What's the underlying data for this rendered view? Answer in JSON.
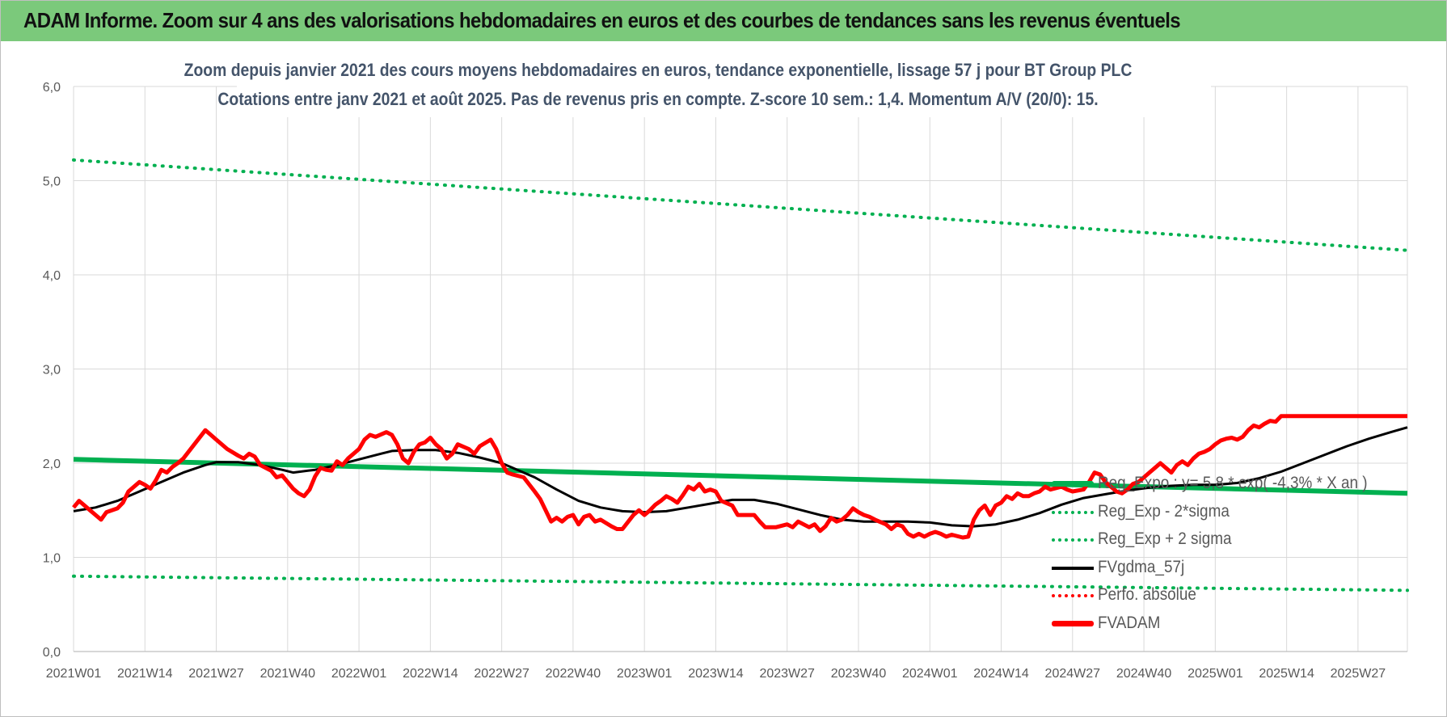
{
  "header": {
    "title": "ADAM Informe. Zoom sur 4 ans des valorisations hebdomadaires en euros et des courbes de tendances sans les revenus éventuels"
  },
  "chart_data": {
    "type": "line",
    "title": "Zoom depuis janvier 2021 des cours moyens hebdomadaires en euros, tendance exponentielle, lissage 57 j pour BT Group PLC",
    "subtitle": "Cotations entre janv 2021 et août 2025.  Pas de revenus pris en compte. Z-score 10 sem.: 1,4. Momentum A/V (20/0): 15.",
    "xlabel": "",
    "ylabel": "",
    "ylim": [
      0,
      6
    ],
    "yticks": [
      "0,0",
      "1,0",
      "2,0",
      "3,0",
      "4,0",
      "5,0",
      "6,0"
    ],
    "x_range_weeks": [
      0,
      243
    ],
    "xticks": [
      {
        "week": 0,
        "label": "2021W01"
      },
      {
        "week": 13,
        "label": "2021W14"
      },
      {
        "week": 26,
        "label": "2021W27"
      },
      {
        "week": 39,
        "label": "2021W40"
      },
      {
        "week": 52,
        "label": "2022W01"
      },
      {
        "week": 65,
        "label": "2022W14"
      },
      {
        "week": 78,
        "label": "2022W27"
      },
      {
        "week": 91,
        "label": "2022W40"
      },
      {
        "week": 104,
        "label": "2023W01"
      },
      {
        "week": 117,
        "label": "2023W14"
      },
      {
        "week": 130,
        "label": "2023W27"
      },
      {
        "week": 143,
        "label": "2023W40"
      },
      {
        "week": 156,
        "label": "2024W01"
      },
      {
        "week": 169,
        "label": "2024W14"
      },
      {
        "week": 182,
        "label": "2024W27"
      },
      {
        "week": 195,
        "label": "2024W40"
      },
      {
        "week": 208,
        "label": "2025W01"
      },
      {
        "week": 221,
        "label": "2025W14"
      },
      {
        "week": 234,
        "label": "2025W27"
      }
    ],
    "grid": true,
    "legend_position": "right",
    "series": [
      {
        "name": "Reg_Expo : y= 5,8 * exp( -4,3% * X  an )",
        "style": "solid-thick",
        "color": "#00b050",
        "points": [
          [
            0,
            2.04
          ],
          [
            243,
            1.68
          ]
        ]
      },
      {
        "name": "Reg_Exp - 2*sigma",
        "style": "dotted",
        "color": "#00b050",
        "points": [
          [
            0,
            0.8
          ],
          [
            243,
            0.65
          ]
        ]
      },
      {
        "name": "Reg_Exp + 2 sigma",
        "style": "dotted",
        "color": "#00b050",
        "points": [
          [
            0,
            5.22
          ],
          [
            243,
            4.26
          ]
        ]
      },
      {
        "name": "FVgdma_57j",
        "style": "solid",
        "color": "#000000",
        "points": [
          [
            0,
            1.49
          ],
          [
            4,
            1.53
          ],
          [
            8,
            1.6
          ],
          [
            12,
            1.7
          ],
          [
            16,
            1.8
          ],
          [
            20,
            1.9
          ],
          [
            24,
            1.98
          ],
          [
            26,
            2.01
          ],
          [
            30,
            2.01
          ],
          [
            34,
            1.98
          ],
          [
            38,
            1.93
          ],
          [
            40,
            1.9
          ],
          [
            44,
            1.93
          ],
          [
            48,
            1.98
          ],
          [
            52,
            2.04
          ],
          [
            56,
            2.1
          ],
          [
            58,
            2.13
          ],
          [
            62,
            2.14
          ],
          [
            66,
            2.14
          ],
          [
            70,
            2.11
          ],
          [
            74,
            2.06
          ],
          [
            78,
            2.0
          ],
          [
            80,
            1.95
          ],
          [
            84,
            1.85
          ],
          [
            88,
            1.72
          ],
          [
            92,
            1.6
          ],
          [
            96,
            1.53
          ],
          [
            100,
            1.49
          ],
          [
            104,
            1.48
          ],
          [
            108,
            1.49
          ],
          [
            112,
            1.53
          ],
          [
            116,
            1.57
          ],
          [
            120,
            1.61
          ],
          [
            124,
            1.61
          ],
          [
            128,
            1.57
          ],
          [
            132,
            1.51
          ],
          [
            136,
            1.45
          ],
          [
            140,
            1.4
          ],
          [
            144,
            1.38
          ],
          [
            148,
            1.38
          ],
          [
            152,
            1.38
          ],
          [
            156,
            1.37
          ],
          [
            160,
            1.34
          ],
          [
            164,
            1.33
          ],
          [
            168,
            1.35
          ],
          [
            172,
            1.4
          ],
          [
            176,
            1.47
          ],
          [
            180,
            1.56
          ],
          [
            184,
            1.63
          ],
          [
            188,
            1.67
          ],
          [
            192,
            1.71
          ],
          [
            196,
            1.74
          ],
          [
            200,
            1.76
          ],
          [
            204,
            1.77
          ],
          [
            208,
            1.77
          ],
          [
            212,
            1.79
          ],
          [
            216,
            1.84
          ],
          [
            220,
            1.91
          ],
          [
            224,
            2.0
          ],
          [
            228,
            2.09
          ],
          [
            232,
            2.18
          ],
          [
            236,
            2.26
          ],
          [
            240,
            2.33
          ],
          [
            243,
            2.38
          ]
        ]
      },
      {
        "name": "Perfo. absolue",
        "style": "dotted",
        "color": "#ff0000",
        "points": []
      },
      {
        "name": "FVADAM",
        "style": "solid-thick",
        "color": "#ff0000",
        "points": [
          [
            0,
            1.53
          ],
          [
            1,
            1.6
          ],
          [
            2,
            1.55
          ],
          [
            3,
            1.5
          ],
          [
            5,
            1.4
          ],
          [
            6,
            1.48
          ],
          [
            8,
            1.52
          ],
          [
            9,
            1.58
          ],
          [
            10,
            1.7
          ],
          [
            12,
            1.8
          ],
          [
            13,
            1.77
          ],
          [
            14,
            1.73
          ],
          [
            15,
            1.82
          ],
          [
            16,
            1.93
          ],
          [
            17,
            1.9
          ],
          [
            18,
            1.96
          ],
          [
            19,
            2.0
          ],
          [
            20,
            2.05
          ],
          [
            22,
            2.2
          ],
          [
            24,
            2.35
          ],
          [
            25,
            2.3
          ],
          [
            26,
            2.25
          ],
          [
            28,
            2.15
          ],
          [
            30,
            2.08
          ],
          [
            31,
            2.05
          ],
          [
            32,
            2.1
          ],
          [
            33,
            2.07
          ],
          [
            34,
            1.98
          ],
          [
            36,
            1.92
          ],
          [
            37,
            1.85
          ],
          [
            38,
            1.87
          ],
          [
            40,
            1.73
          ],
          [
            41,
            1.68
          ],
          [
            42,
            1.65
          ],
          [
            43,
            1.72
          ],
          [
            44,
            1.86
          ],
          [
            45,
            1.95
          ],
          [
            46,
            1.93
          ],
          [
            47,
            1.92
          ],
          [
            48,
            2.02
          ],
          [
            49,
            1.98
          ],
          [
            50,
            2.05
          ],
          [
            52,
            2.15
          ],
          [
            53,
            2.25
          ],
          [
            54,
            2.3
          ],
          [
            55,
            2.28
          ],
          [
            57,
            2.33
          ],
          [
            58,
            2.3
          ],
          [
            59,
            2.2
          ],
          [
            60,
            2.05
          ],
          [
            61,
            2.0
          ],
          [
            62,
            2.12
          ],
          [
            63,
            2.2
          ],
          [
            64,
            2.22
          ],
          [
            65,
            2.27
          ],
          [
            66,
            2.2
          ],
          [
            67,
            2.15
          ],
          [
            68,
            2.05
          ],
          [
            69,
            2.1
          ],
          [
            70,
            2.2
          ],
          [
            72,
            2.15
          ],
          [
            73,
            2.1
          ],
          [
            74,
            2.18
          ],
          [
            76,
            2.25
          ],
          [
            77,
            2.15
          ],
          [
            78,
            2.0
          ],
          [
            79,
            1.9
          ],
          [
            80,
            1.88
          ],
          [
            82,
            1.85
          ],
          [
            84,
            1.7
          ],
          [
            85,
            1.62
          ],
          [
            86,
            1.5
          ],
          [
            87,
            1.38
          ],
          [
            88,
            1.42
          ],
          [
            89,
            1.38
          ],
          [
            90,
            1.43
          ],
          [
            91,
            1.45
          ],
          [
            92,
            1.35
          ],
          [
            93,
            1.43
          ],
          [
            94,
            1.45
          ],
          [
            95,
            1.38
          ],
          [
            96,
            1.4
          ],
          [
            98,
            1.33
          ],
          [
            99,
            1.3
          ],
          [
            100,
            1.3
          ],
          [
            102,
            1.45
          ],
          [
            103,
            1.5
          ],
          [
            104,
            1.45
          ],
          [
            105,
            1.5
          ],
          [
            106,
            1.56
          ],
          [
            107,
            1.6
          ],
          [
            108,
            1.65
          ],
          [
            109,
            1.62
          ],
          [
            110,
            1.58
          ],
          [
            111,
            1.66
          ],
          [
            112,
            1.75
          ],
          [
            113,
            1.72
          ],
          [
            114,
            1.78
          ],
          [
            115,
            1.7
          ],
          [
            116,
            1.72
          ],
          [
            117,
            1.7
          ],
          [
            118,
            1.6
          ],
          [
            120,
            1.55
          ],
          [
            121,
            1.45
          ],
          [
            122,
            1.45
          ],
          [
            124,
            1.45
          ],
          [
            125,
            1.38
          ],
          [
            126,
            1.32
          ],
          [
            128,
            1.32
          ],
          [
            130,
            1.35
          ],
          [
            131,
            1.32
          ],
          [
            132,
            1.38
          ],
          [
            133,
            1.35
          ],
          [
            134,
            1.32
          ],
          [
            135,
            1.35
          ],
          [
            136,
            1.28
          ],
          [
            137,
            1.33
          ],
          [
            138,
            1.42
          ],
          [
            139,
            1.38
          ],
          [
            140,
            1.4
          ],
          [
            141,
            1.45
          ],
          [
            142,
            1.52
          ],
          [
            143,
            1.48
          ],
          [
            144,
            1.45
          ],
          [
            145,
            1.43
          ],
          [
            146,
            1.4
          ],
          [
            148,
            1.35
          ],
          [
            149,
            1.3
          ],
          [
            150,
            1.35
          ],
          [
            151,
            1.33
          ],
          [
            152,
            1.25
          ],
          [
            153,
            1.22
          ],
          [
            154,
            1.25
          ],
          [
            155,
            1.22
          ],
          [
            156,
            1.25
          ],
          [
            157,
            1.27
          ],
          [
            158,
            1.25
          ],
          [
            159,
            1.22
          ],
          [
            160,
            1.24
          ],
          [
            162,
            1.21
          ],
          [
            163,
            1.22
          ],
          [
            164,
            1.4
          ],
          [
            165,
            1.5
          ],
          [
            166,
            1.55
          ],
          [
            167,
            1.45
          ],
          [
            168,
            1.55
          ],
          [
            169,
            1.58
          ],
          [
            170,
            1.65
          ],
          [
            171,
            1.62
          ],
          [
            172,
            1.68
          ],
          [
            173,
            1.65
          ],
          [
            174,
            1.65
          ],
          [
            175,
            1.68
          ],
          [
            176,
            1.7
          ],
          [
            177,
            1.75
          ],
          [
            178,
            1.72
          ],
          [
            180,
            1.75
          ],
          [
            181,
            1.72
          ],
          [
            182,
            1.7
          ],
          [
            184,
            1.72
          ],
          [
            185,
            1.8
          ],
          [
            186,
            1.9
          ],
          [
            187,
            1.88
          ],
          [
            188,
            1.8
          ],
          [
            189,
            1.75
          ],
          [
            190,
            1.7
          ],
          [
            191,
            1.68
          ],
          [
            192,
            1.72
          ],
          [
            193,
            1.78
          ],
          [
            194,
            1.8
          ],
          [
            195,
            1.85
          ],
          [
            196,
            1.9
          ],
          [
            197,
            1.95
          ],
          [
            198,
            2.0
          ],
          [
            199,
            1.95
          ],
          [
            200,
            1.9
          ],
          [
            201,
            1.98
          ],
          [
            202,
            2.02
          ],
          [
            203,
            1.98
          ],
          [
            204,
            2.05
          ],
          [
            205,
            2.1
          ],
          [
            206,
            2.12
          ],
          [
            207,
            2.15
          ],
          [
            208,
            2.2
          ],
          [
            209,
            2.24
          ],
          [
            210,
            2.26
          ],
          [
            211,
            2.27
          ],
          [
            212,
            2.25
          ],
          [
            213,
            2.28
          ],
          [
            214,
            2.35
          ],
          [
            215,
            2.4
          ],
          [
            216,
            2.38
          ],
          [
            217,
            2.42
          ],
          [
            218,
            2.45
          ],
          [
            219,
            2.44
          ],
          [
            220,
            2.5
          ],
          [
            243,
            2.5
          ]
        ]
      }
    ]
  }
}
